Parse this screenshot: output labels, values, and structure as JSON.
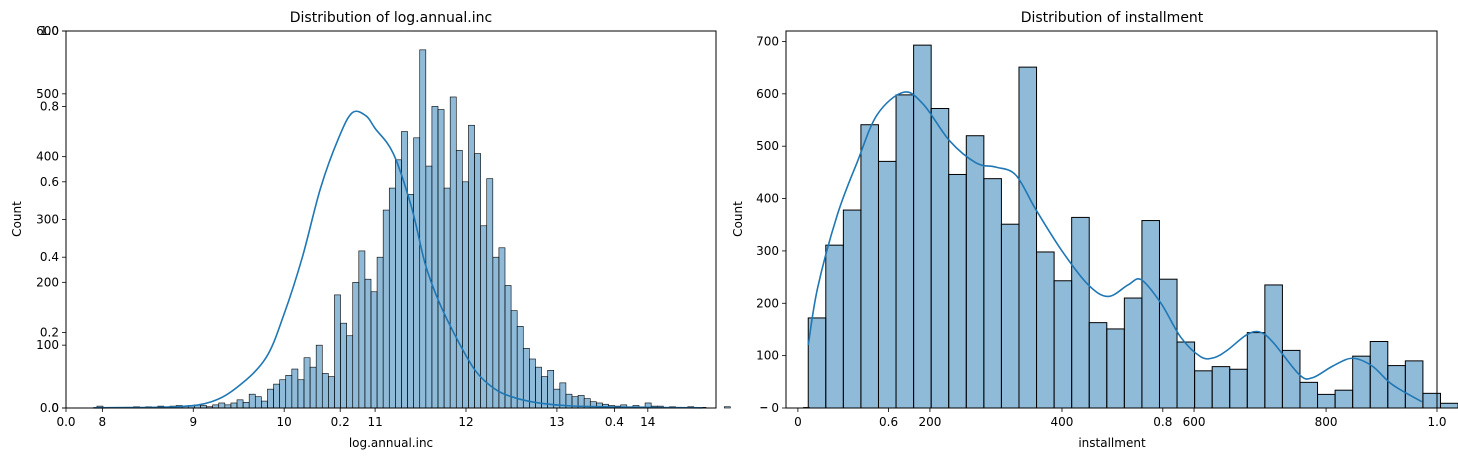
{
  "colors": {
    "bar_fill": "#1f77b4",
    "kde_line": "#1f77b4",
    "axes": "#000000"
  },
  "overlay_ticks": {
    "y": [
      "0.0",
      "0.2",
      "0.4",
      "0.6",
      "0.8",
      "1.0"
    ],
    "x": [
      "0.0",
      "0.2",
      "0.4",
      "0.6",
      "0.8",
      "1.0"
    ]
  },
  "chart_data": [
    {
      "type": "histogram",
      "title": "Distribution of log.annual.inc",
      "xlabel": "log.annual.inc",
      "ylabel": "Count",
      "xlim": [
        7.6,
        14.75
      ],
      "ylim": [
        0,
        600
      ],
      "xticks": [
        8,
        9,
        10,
        11,
        12,
        13,
        14
      ],
      "yticks": [
        0,
        100,
        200,
        300,
        400,
        500,
        600
      ],
      "kde": true,
      "bin_start": 7.94,
      "bin_width": 0.067,
      "counts": [
        3,
        0,
        0,
        0,
        0,
        0,
        2,
        0,
        2,
        0,
        3,
        0,
        3,
        4,
        3,
        4,
        5,
        4,
        2,
        5,
        8,
        5,
        8,
        13,
        9,
        22,
        18,
        11,
        30,
        38,
        45,
        52,
        62,
        45,
        80,
        65,
        100,
        55,
        50,
        180,
        135,
        115,
        200,
        250,
        205,
        185,
        240,
        315,
        350,
        395,
        440,
        340,
        430,
        570,
        385,
        480,
        475,
        350,
        495,
        410,
        360,
        450,
        405,
        290,
        365,
        240,
        255,
        195,
        155,
        130,
        95,
        78,
        65,
        50,
        60,
        30,
        40,
        22,
        18,
        20,
        15,
        10,
        8,
        6,
        4,
        3,
        5,
        2,
        4,
        2,
        8,
        3,
        3,
        1,
        2,
        1,
        1,
        2,
        0,
        1,
        0,
        0,
        0,
        2,
        0,
        0,
        0,
        0,
        0,
        1,
        0,
        0,
        0,
        0,
        0,
        0,
        1
      ],
      "kde_points": [
        [
          7.9,
          0.3
        ],
        [
          8.8,
          2
        ],
        [
          9.2,
          10
        ],
        [
          9.5,
          35
        ],
        [
          9.8,
          80
        ],
        [
          10.0,
          150
        ],
        [
          10.2,
          240
        ],
        [
          10.4,
          350
        ],
        [
          10.6,
          430
        ],
        [
          10.75,
          470
        ],
        [
          10.9,
          465
        ],
        [
          11.0,
          445
        ],
        [
          11.2,
          405
        ],
        [
          11.4,
          320
        ],
        [
          11.55,
          230
        ],
        [
          11.7,
          170
        ],
        [
          11.9,
          110
        ],
        [
          12.1,
          60
        ],
        [
          12.3,
          32
        ],
        [
          12.5,
          18
        ],
        [
          12.8,
          8
        ],
        [
          13.2,
          3
        ],
        [
          14.0,
          1
        ],
        [
          14.6,
          0.3
        ]
      ]
    },
    {
      "type": "histogram",
      "title": "Distribution of installment",
      "xlabel": "installment",
      "ylabel": "Count",
      "xlim": [
        -18,
        968
      ],
      "ylim": [
        0,
        720
      ],
      "xticks": [
        0,
        200,
        400,
        600,
        800
      ],
      "yticks": [
        0,
        100,
        200,
        300,
        400,
        500,
        600,
        700
      ],
      "kde": true,
      "bin_start": 15.67,
      "bin_width": 26.6,
      "counts": [
        172,
        311,
        378,
        541,
        471,
        598,
        693,
        572,
        446,
        520,
        438,
        351,
        651,
        298,
        243,
        364,
        163,
        151,
        210,
        358,
        246,
        126,
        71,
        79,
        74,
        144,
        235,
        110,
        49,
        26,
        34,
        99,
        127,
        81,
        90,
        28,
        9
      ],
      "kde_points": [
        [
          15.7,
          120
        ],
        [
          30,
          230
        ],
        [
          60,
          370
        ],
        [
          90,
          470
        ],
        [
          120,
          560
        ],
        [
          160,
          603
        ],
        [
          190,
          580
        ],
        [
          230,
          510
        ],
        [
          270,
          468
        ],
        [
          300,
          460
        ],
        [
          330,
          445
        ],
        [
          360,
          380
        ],
        [
          400,
          300
        ],
        [
          440,
          235
        ],
        [
          470,
          213
        ],
        [
          500,
          235
        ],
        [
          520,
          245
        ],
        [
          550,
          200
        ],
        [
          580,
          135
        ],
        [
          610,
          98
        ],
        [
          630,
          96
        ],
        [
          650,
          110
        ],
        [
          680,
          140
        ],
        [
          700,
          145
        ],
        [
          720,
          125
        ],
        [
          760,
          63
        ],
        [
          780,
          58
        ],
        [
          810,
          80
        ],
        [
          840,
          95
        ],
        [
          870,
          80
        ],
        [
          900,
          45
        ],
        [
          945,
          12
        ]
      ]
    }
  ]
}
